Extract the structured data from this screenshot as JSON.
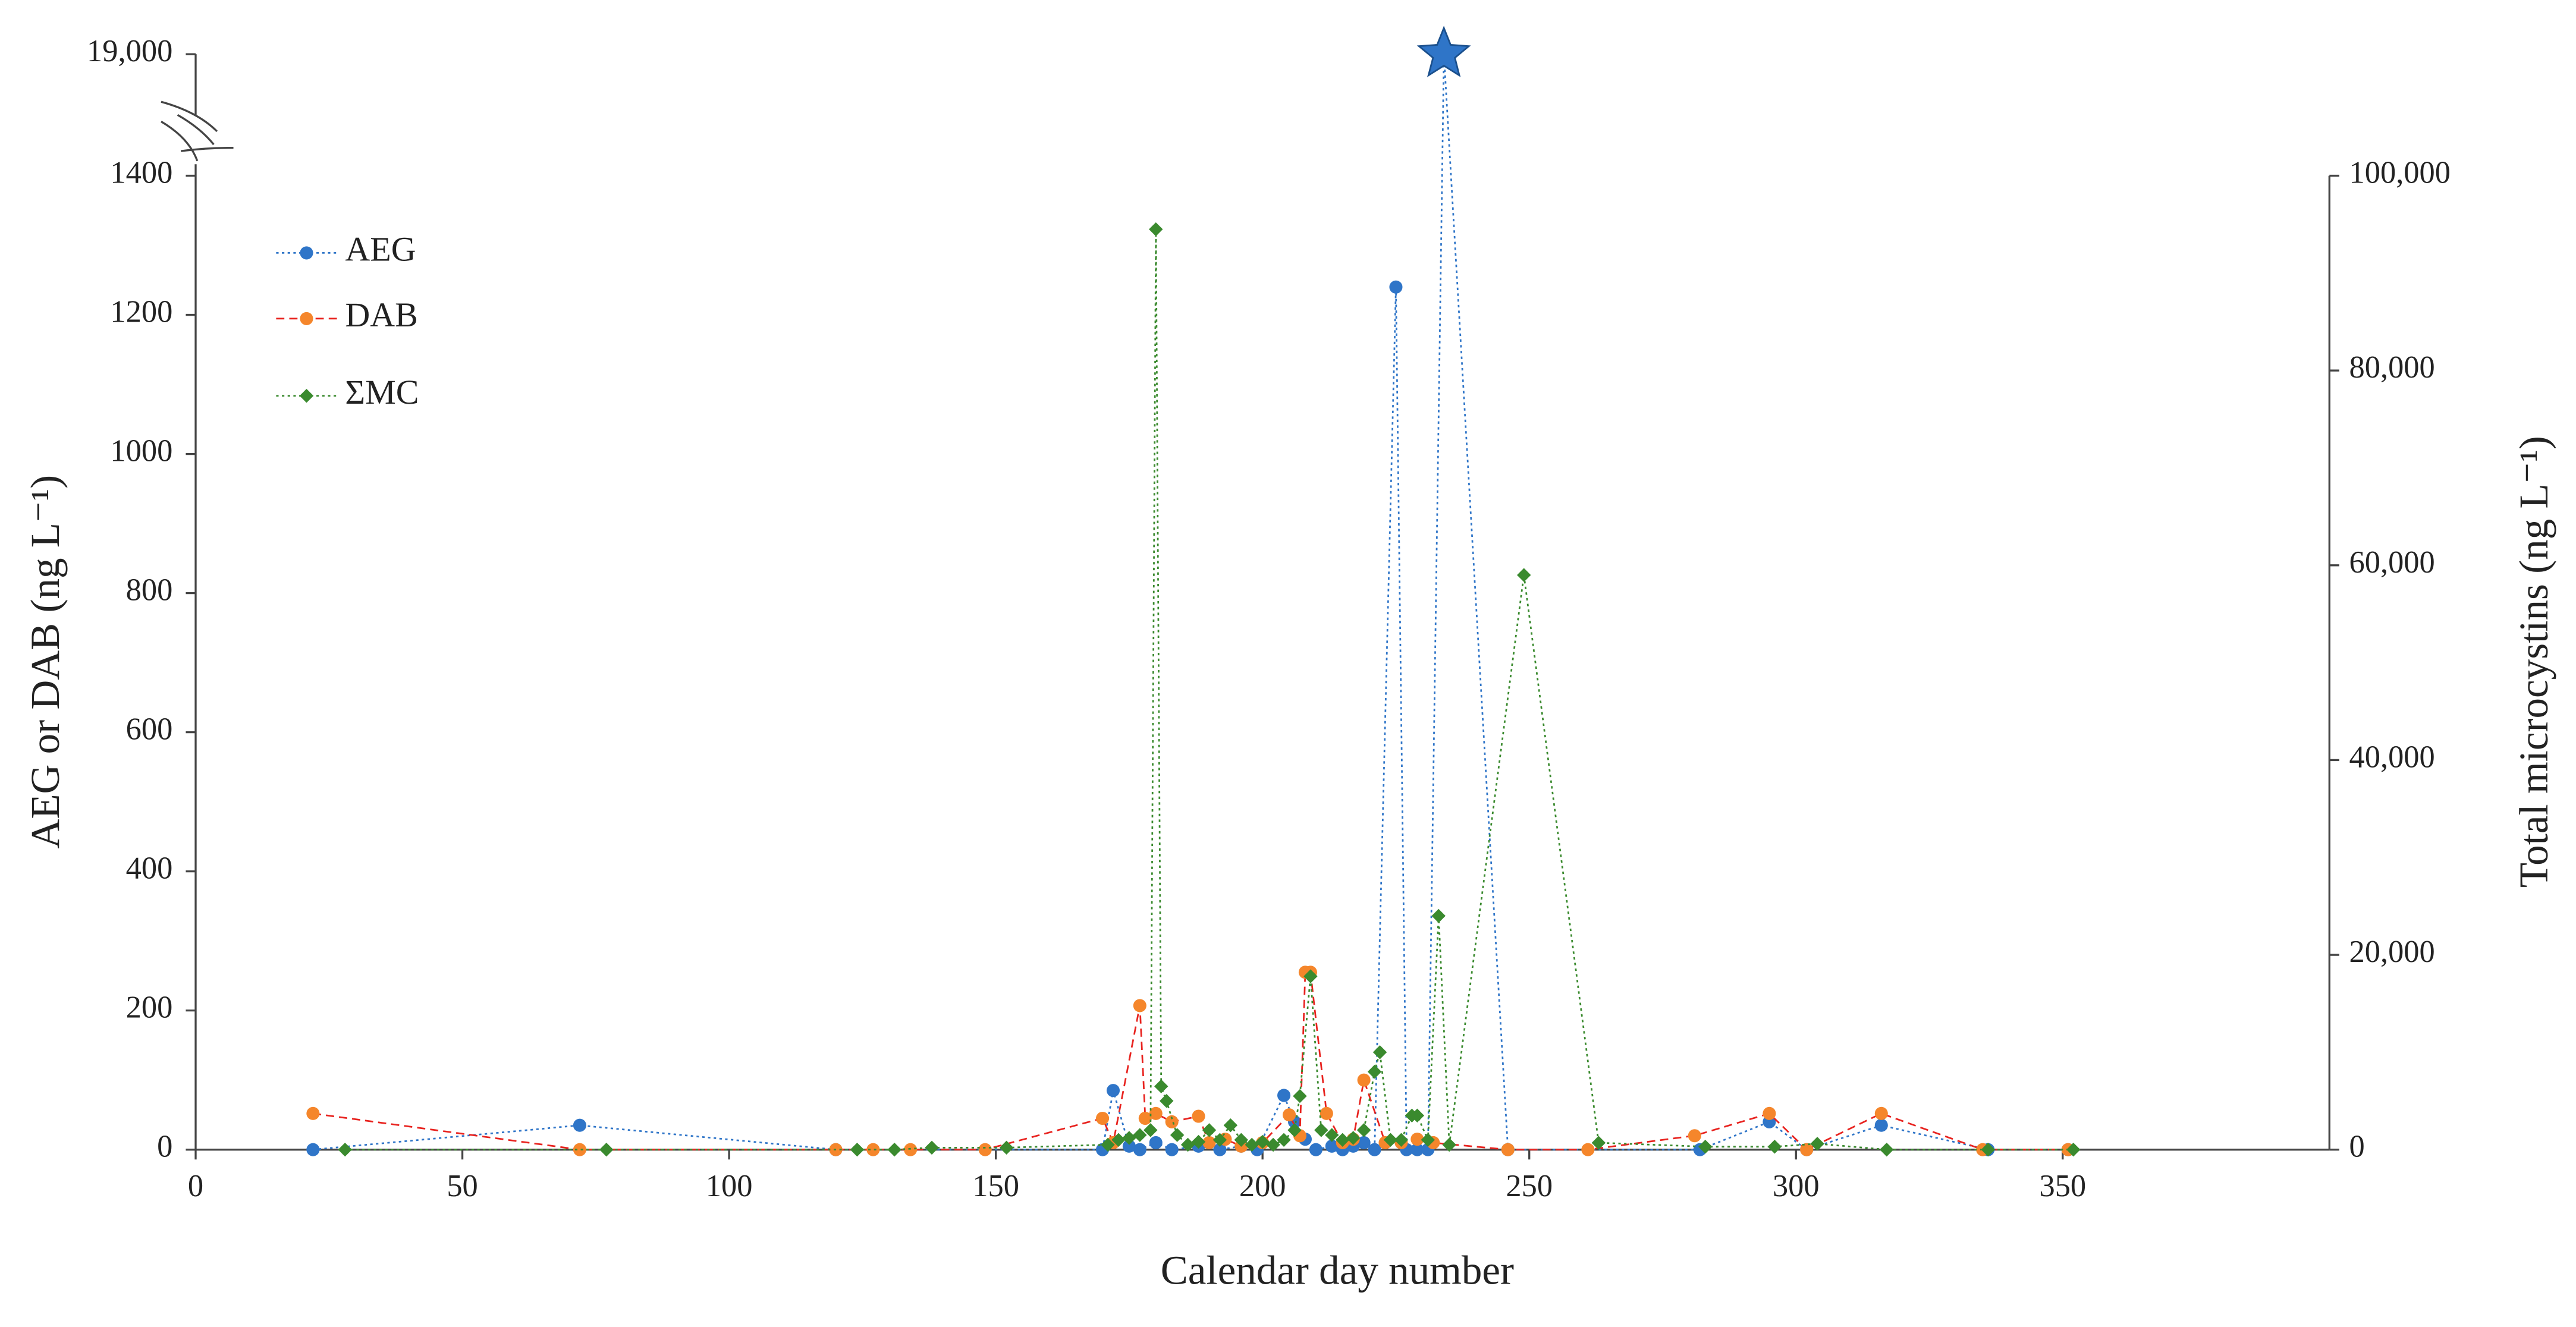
{
  "chart_data": {
    "type": "line",
    "x_label": "Calendar day number",
    "y_label": "AEG or DAB (ng L⁻¹)",
    "y2_label": "Total microcystins (ng L⁻¹)",
    "xlim": [
      0,
      400
    ],
    "xticks": [
      0,
      50,
      100,
      150,
      200,
      250,
      300,
      350
    ],
    "ylim": [
      0,
      1400
    ],
    "yticks": [
      0,
      200,
      400,
      600,
      800,
      1000,
      1200,
      1400,
      {
        "value": 19000,
        "label": "19,000"
      }
    ],
    "axis_break": true,
    "y2lim": [
      0,
      100000
    ],
    "y2ticks": [
      0,
      {
        "value": 20000,
        "label": "20,000"
      },
      {
        "value": 40000,
        "label": "40,000"
      },
      {
        "value": 60000,
        "label": "60,000"
      },
      {
        "value": 80000,
        "label": "80,000"
      },
      {
        "value": 100000,
        "label": "100,000"
      }
    ],
    "legend": "upper left",
    "grid": false,
    "series": [
      {
        "name": "AEG",
        "color": "#2f75c8",
        "line_style": "dotted",
        "marker": "circle",
        "x": [
          22,
          72,
          120,
          170,
          172,
          175,
          177,
          180,
          183,
          188,
          192,
          196,
          199,
          204,
          206,
          208,
          210,
          213,
          215,
          217,
          219,
          221,
          225,
          227,
          229,
          231,
          234,
          246,
          282,
          295,
          302,
          316,
          336,
          351
        ],
        "values": [
          0,
          35,
          0,
          0,
          85,
          5,
          0,
          10,
          0,
          5,
          0,
          5,
          0,
          78,
          40,
          15,
          0,
          5,
          0,
          5,
          10,
          0,
          1240,
          0,
          0,
          0,
          19000,
          0,
          0,
          40,
          0,
          35,
          0,
          0
        ]
      },
      {
        "name": "DAB",
        "color": "#e8231f",
        "marker_color": "#f5862b",
        "line_style": "dashed",
        "marker": "circle",
        "x": [
          22,
          72,
          120,
          127,
          134,
          148,
          170,
          172,
          177,
          178,
          180,
          183,
          188,
          190,
          193,
          196,
          200,
          205,
          207,
          208,
          209,
          212,
          215,
          217,
          219,
          223,
          226,
          229,
          232,
          246,
          261,
          281,
          295,
          302,
          316,
          335,
          351
        ],
        "values": [
          52,
          0,
          0,
          0,
          0,
          0,
          45,
          10,
          207,
          45,
          52,
          40,
          48,
          10,
          15,
          5,
          10,
          50,
          20,
          255,
          255,
          52,
          10,
          15,
          100,
          10,
          10,
          15,
          10,
          0,
          0,
          20,
          52,
          0,
          52,
          0,
          0
        ]
      },
      {
        "name": "ΣMC",
        "color": "#3a8a2e",
        "line_style": "dotted",
        "marker": "diamond",
        "axis": "y2",
        "x": [
          28,
          77,
          124,
          131,
          138,
          152,
          171,
          173,
          175,
          177,
          179,
          180,
          181,
          182,
          184,
          186,
          188,
          190,
          192,
          194,
          196,
          198,
          200,
          202,
          204,
          206,
          207,
          209,
          211,
          213,
          215,
          217,
          219,
          221,
          222,
          224,
          226,
          228,
          229,
          231,
          233,
          235,
          249,
          263,
          283,
          296,
          304,
          317,
          336,
          352
        ],
        "values": [
          0,
          0,
          0,
          0,
          200,
          200,
          500,
          1000,
          1200,
          1500,
          2000,
          94500,
          6500,
          5000,
          1500,
          500,
          800,
          2000,
          1000,
          2500,
          1000,
          500,
          800,
          500,
          1000,
          2000,
          5500,
          17800,
          2000,
          1500,
          1000,
          1200,
          2000,
          8000,
          10000,
          1000,
          1000,
          3500,
          3500,
          1000,
          24000,
          500,
          59000,
          700,
          300,
          300,
          600,
          0,
          0,
          0
        ]
      }
    ]
  }
}
